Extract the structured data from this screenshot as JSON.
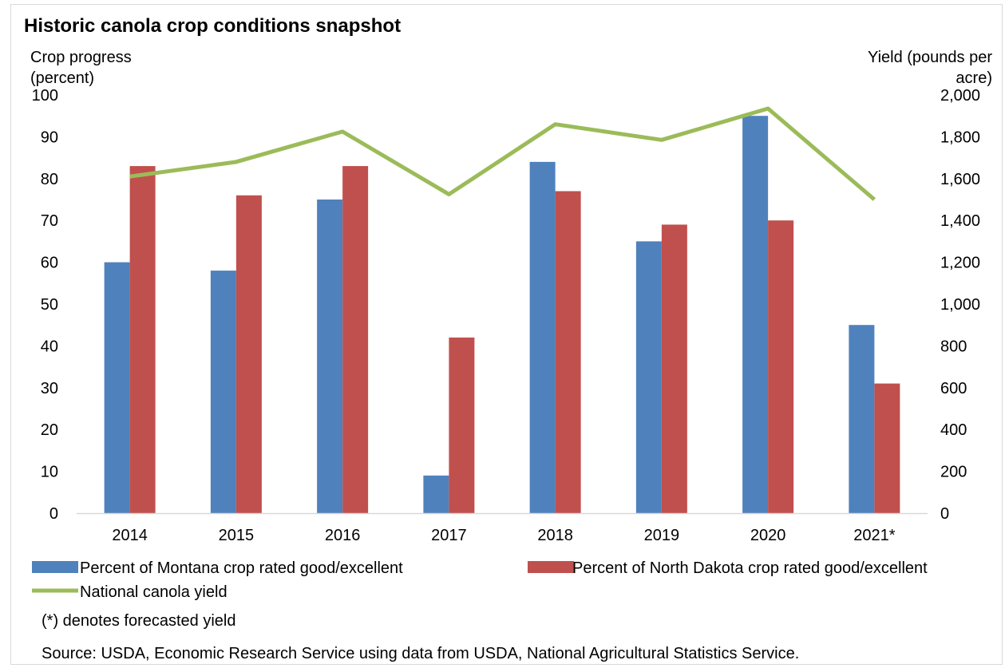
{
  "chart_data": {
    "type": "bar",
    "title": "Historic canola crop conditions snapshot",
    "y_left_label_lines": [
      "Crop progress",
      "(percent)"
    ],
    "y_right_label_lines": [
      "Yield (pounds per",
      "acre)"
    ],
    "categories": [
      "2014",
      "2015",
      "2016",
      "2017",
      "2018",
      "2019",
      "2020",
      "2021*"
    ],
    "y_left_ticks": [
      "0",
      "10",
      "20",
      "30",
      "40",
      "50",
      "60",
      "70",
      "80",
      "90",
      "100"
    ],
    "y_right_ticks": [
      "0",
      "200",
      "400",
      "600",
      "800",
      "1,000",
      "1,200",
      "1,400",
      "1,600",
      "1,800",
      "2,000"
    ],
    "ylim_left": [
      0,
      100
    ],
    "ylim_right": [
      0,
      2000
    ],
    "series": [
      {
        "name": "Percent of Montana crop rated good/excellent",
        "kind": "bar",
        "axis": "left",
        "color": "#4F81BD",
        "values": [
          60,
          58,
          75,
          9,
          84,
          65,
          95,
          45
        ]
      },
      {
        "name": "Percent of North Dakota crop rated good/excellent",
        "kind": "bar",
        "axis": "left",
        "color": "#C0504D",
        "values": [
          83,
          76,
          83,
          42,
          77,
          69,
          70,
          31
        ]
      },
      {
        "name": "National canola yield",
        "kind": "line",
        "axis": "right",
        "color": "#9BBB59",
        "values": [
          1610,
          1680,
          1825,
          1525,
          1860,
          1785,
          1935,
          1500
        ]
      }
    ],
    "notes": [
      "(*) denotes forecasted yield",
      "Source: USDA, Economic Research Service using data from USDA, National Agricultural Statistics Service."
    ],
    "grid": false,
    "legend_position": "bottom"
  }
}
